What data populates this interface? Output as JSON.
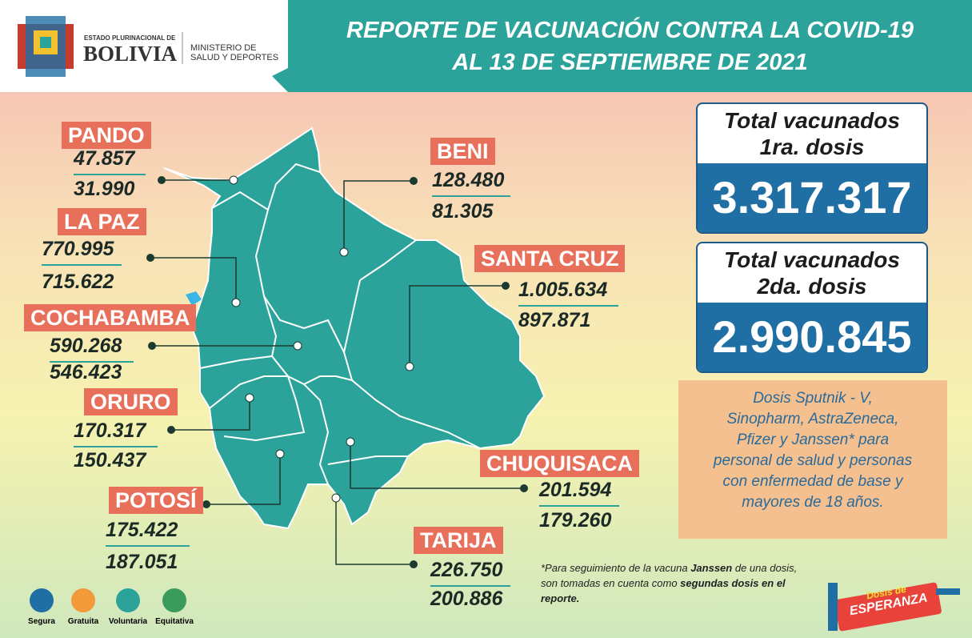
{
  "header": {
    "emblem_top": "ESTADO PLURINACIONAL DE",
    "emblem_name": "BOLIVIA",
    "ministry": [
      "MINISTERIO DE",
      "SALUD Y DEPORTES"
    ],
    "title": [
      "REPORTE DE VACUNACIÓN CONTRA LA COVID-19",
      "AL 13 DE SEPTIEMBRE DE 2021"
    ]
  },
  "departments": [
    {
      "name": "PANDO",
      "dose1": "47.857",
      "dose2": "31.990"
    },
    {
      "name": "BENI",
      "dose1": "128.480",
      "dose2": "81.305"
    },
    {
      "name": "LA PAZ",
      "dose1": "770.995",
      "dose2": "715.622"
    },
    {
      "name": "SANTA CRUZ",
      "dose1": "1.005.634",
      "dose2": "897.871"
    },
    {
      "name": "COCHABAMBA",
      "dose1": "590.268",
      "dose2": "546.423"
    },
    {
      "name": "ORURO",
      "dose1": "170.317",
      "dose2": "150.437"
    },
    {
      "name": "CHUQUISACA",
      "dose1": "201.594",
      "dose2": "179.260"
    },
    {
      "name": "POTOSÍ",
      "dose1": "175.422",
      "dose2": "187.051"
    },
    {
      "name": "TARIJA",
      "dose1": "226.750",
      "dose2": "200.886"
    }
  ],
  "totals": [
    {
      "label": [
        "Total vacunados",
        "1ra. dosis"
      ],
      "value": "3.317.317"
    },
    {
      "label": [
        "Total vacunados",
        "2da. dosis"
      ],
      "value": "2.990.845"
    }
  ],
  "note": [
    "Dosis Sputnik - V,",
    "Sinopharm, AstraZeneca,",
    "Pfizer y Janssen* para",
    "personal de salud y personas",
    "con enfermedad de base y",
    "mayores de 18 años."
  ],
  "footnote": {
    "line1_a": "*Para seguimiento de la vacuna ",
    "line1_b": "Janssen",
    "line1_c": " de una dosis,",
    "line2_a": "son tomadas en cuenta como ",
    "line2_b": "segundas dosis en el",
    "line3": "reporte."
  },
  "badges": [
    "Segura",
    "Gratuita",
    "Voluntaria",
    "Equitativa"
  ],
  "campaign": [
    "Dosis de",
    "ESPERANZA"
  ]
}
